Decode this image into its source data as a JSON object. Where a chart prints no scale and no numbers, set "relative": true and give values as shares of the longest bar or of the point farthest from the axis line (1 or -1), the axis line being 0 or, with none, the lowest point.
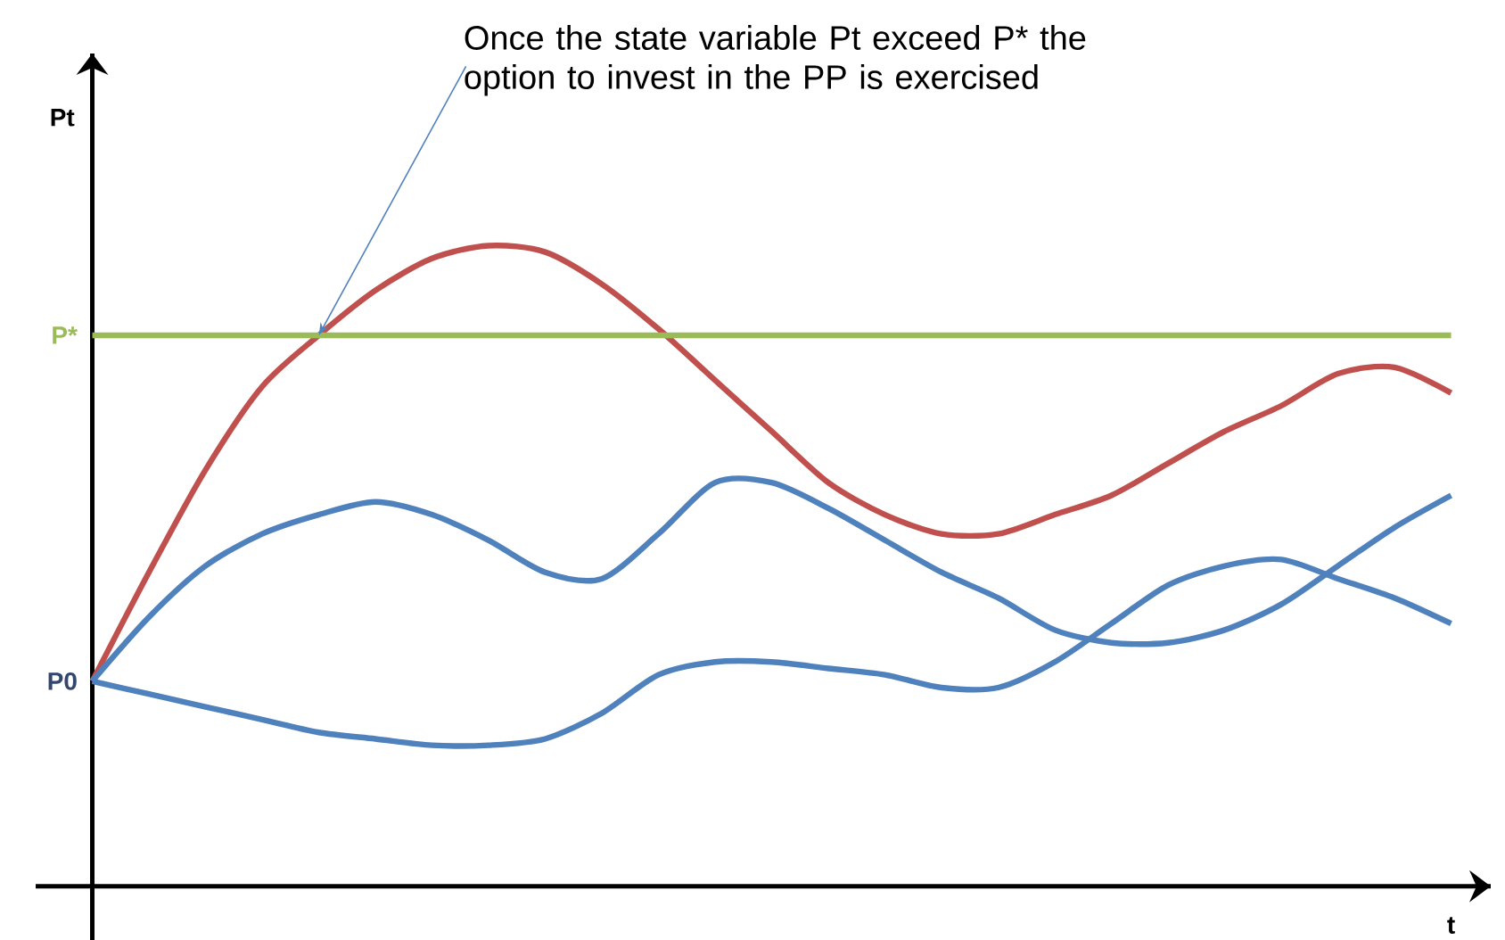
{
  "chart_data": {
    "type": "line",
    "relative": true,
    "xlabel": "t",
    "ylabel": "Pt",
    "marker": "none",
    "line_style": "solid",
    "categories": [
      null,
      null,
      null,
      null,
      null,
      null,
      null,
      null,
      null,
      null,
      null,
      null,
      null,
      null,
      null,
      null,
      null,
      null,
      null,
      null,
      null,
      null,
      null,
      null,
      null
    ],
    "series": [
      {
        "color": "#c0504d",
        "values": [
          0.32,
          0.49,
          0.65,
          0.78,
          0.86,
          0.93,
          0.98,
          1.0,
          0.99,
          0.94,
          0.87,
          0.79,
          0.71,
          0.63,
          0.58,
          0.55,
          0.55,
          0.58,
          0.61,
          0.66,
          0.71,
          0.75,
          0.8,
          0.81,
          0.77
        ]
      },
      {
        "color": "#4f81bd",
        "values": [
          0.32,
          0.42,
          0.5,
          0.55,
          0.58,
          0.6,
          0.58,
          0.54,
          0.49,
          0.48,
          0.55,
          0.63,
          0.63,
          0.59,
          0.54,
          0.49,
          0.45,
          0.4,
          0.38,
          0.38,
          0.4,
          0.44,
          0.5,
          0.56,
          0.61
        ]
      },
      {
        "color": "#4f81bd",
        "values": [
          0.32,
          0.3,
          0.28,
          0.26,
          0.24,
          0.23,
          0.22,
          0.22,
          0.23,
          0.27,
          0.33,
          0.35,
          0.35,
          0.34,
          0.33,
          0.31,
          0.31,
          0.35,
          0.41,
          0.47,
          0.5,
          0.51,
          0.48,
          0.45,
          0.41
        ]
      }
    ],
    "ref_lines": [
      {
        "axis": "y",
        "value": 0.86,
        "label": "P*",
        "color": "#9bbb59"
      }
    ],
    "annotations": [
      "Once the state variable Pt exceed P* the option to invest in the PP is exercised",
      "P0"
    ]
  }
}
